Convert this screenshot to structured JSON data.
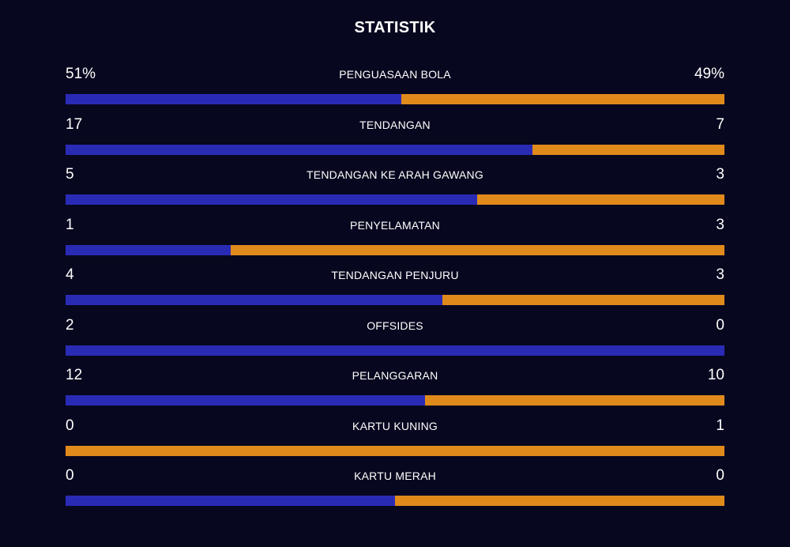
{
  "title": "STATISTIK",
  "colors": {
    "background": "#07071f",
    "home": "#2a2bb5",
    "away": "#e08a1c"
  },
  "stats": [
    {
      "label": "PENGUASAAN BOLA",
      "home": "51%",
      "away": "49%",
      "home_share": 0.51
    },
    {
      "label": "TENDANGAN",
      "home": "17",
      "away": "7",
      "home_share": 0.7083
    },
    {
      "label": "TENDANGAN KE ARAH GAWANG",
      "home": "5",
      "away": "3",
      "home_share": 0.625
    },
    {
      "label": "PENYELAMATAN",
      "home": "1",
      "away": "3",
      "home_share": 0.25
    },
    {
      "label": "TENDANGAN PENJURU",
      "home": "4",
      "away": "3",
      "home_share": 0.5714
    },
    {
      "label": "OFFSIDES",
      "home": "2",
      "away": "0",
      "home_share": 1.0
    },
    {
      "label": "PELANGGARAN",
      "home": "12",
      "away": "10",
      "home_share": 0.5455
    },
    {
      "label": "KARTU KUNING",
      "home": "0",
      "away": "1",
      "home_share": 0.0
    },
    {
      "label": "KARTU MERAH",
      "home": "0",
      "away": "0",
      "home_share": 0.5
    }
  ]
}
